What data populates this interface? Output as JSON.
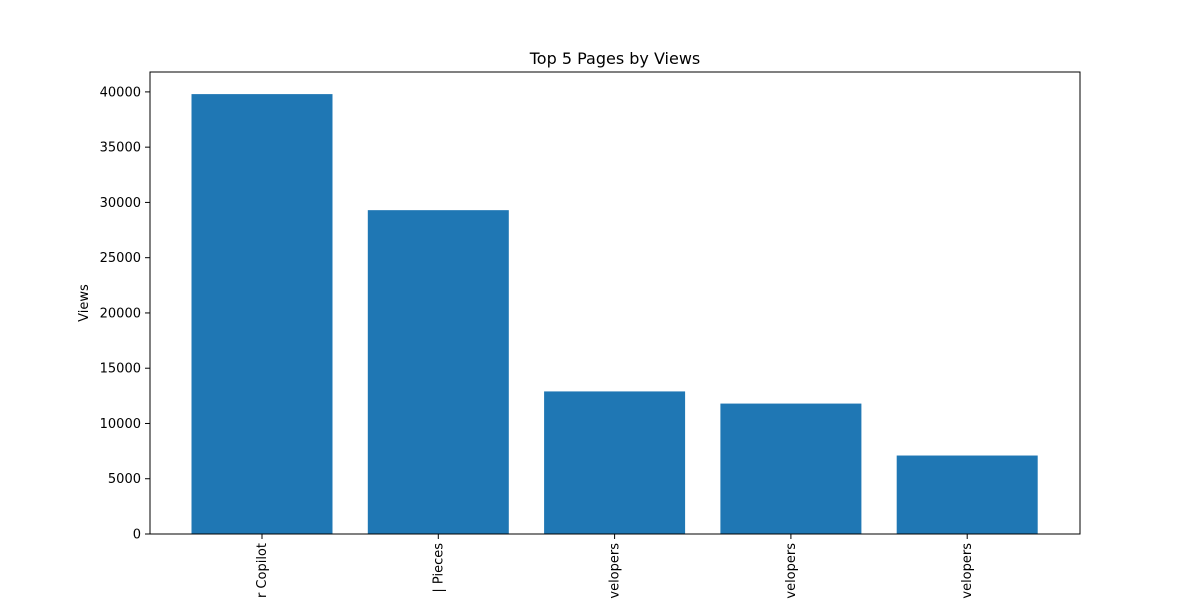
{
  "chart_data": {
    "type": "bar",
    "title": "Top 5 Pages by Views",
    "xlabel": "",
    "ylabel": "Views",
    "categories": [
      "r Copilot",
      "| Pieces",
      "velopers",
      "velopers",
      "velopers"
    ],
    "values": [
      39800,
      29300,
      12900,
      11800,
      7100
    ],
    "ylim": [
      0,
      41800
    ],
    "yticks": [
      0,
      5000,
      10000,
      15000,
      20000,
      25000,
      30000,
      35000,
      40000
    ],
    "bar_color": "#1f77b4",
    "grid": false,
    "legend": "none"
  }
}
